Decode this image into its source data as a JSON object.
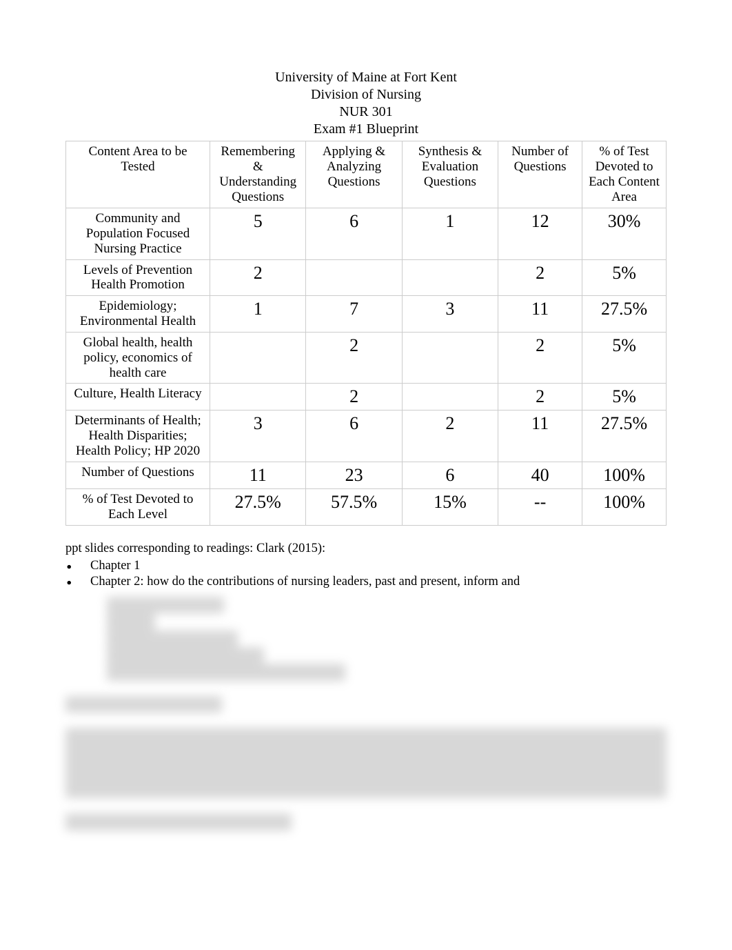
{
  "header": {
    "line1": "University of Maine at Fort Kent",
    "line2": "Division of Nursing",
    "line3": "NUR 301",
    "line4": "Exam #1 Blueprint"
  },
  "table": {
    "columns": [
      "Content Area to be Tested",
      "Remembering & Understanding Questions",
      "Applying & Analyzing Questions",
      "Synthesis & Evaluation Questions",
      "Number of Questions",
      "% of Test Devoted to Each Content Area"
    ],
    "rows": [
      {
        "label": "Community and Population Focused Nursing Practice",
        "c1": "5",
        "c2": "6",
        "c3": "1",
        "c4": "12",
        "c5": "30%"
      },
      {
        "label": "Levels of Prevention Health Promotion",
        "c1": "2",
        "c2": "",
        "c3": "",
        "c4": "2",
        "c5": "5%"
      },
      {
        "label": "Epidemiology; Environmental Health",
        "c1": "1",
        "c2": "7",
        "c3": "3",
        "c4": "11",
        "c5": "27.5%"
      },
      {
        "label": "Global health, health policy, economics of health care",
        "c1": "",
        "c2": "2",
        "c3": "",
        "c4": "2",
        "c5": "5%"
      },
      {
        "label": "Culture, Health Literacy",
        "c1": "",
        "c2": "2",
        "c3": "",
        "c4": "2",
        "c5": "5%"
      },
      {
        "label": "Determinants of Health; Health Disparities; Health Policy; HP 2020",
        "c1": "3",
        "c2": "6",
        "c3": "2",
        "c4": "11",
        "c5": "27.5%"
      },
      {
        "label": "Number of Questions",
        "c1": "11",
        "c2": "23",
        "c3": "6",
        "c4": "40",
        "c5": "100%"
      },
      {
        "label": "% of Test Devoted to Each Level",
        "c1": "27.5%",
        "c2": "57.5%",
        "c3": "15%",
        "c4": "--",
        "c5": "100%"
      }
    ]
  },
  "notes": {
    "intro": "ppt slides corresponding to readings: Clark (2015):",
    "bullets": [
      "Chapter 1",
      "Chapter 2: how do the contributions of nursing leaders, past and present, inform and"
    ]
  },
  "blurred": {
    "line1": "advance nursing today?",
    "line2": "Chapter 3",
    "line3": "Chapter 6 — determinants",
    "line4": "Chapter 7 & 8 — epidemiology",
    "line5": "Chapter 10, 11, 12 — policy, disparities, culture",
    "heading": "40 Multiple Choice Questions",
    "para": "One page of text fills this blurred preview region. The content addresses upcoming syllabus topics including community population health concepts, determinant models, and policy framing. Be sure to review content areas most heavily weighted below.",
    "footer": "Leadership reminders: page 272 Clark (2015)"
  }
}
